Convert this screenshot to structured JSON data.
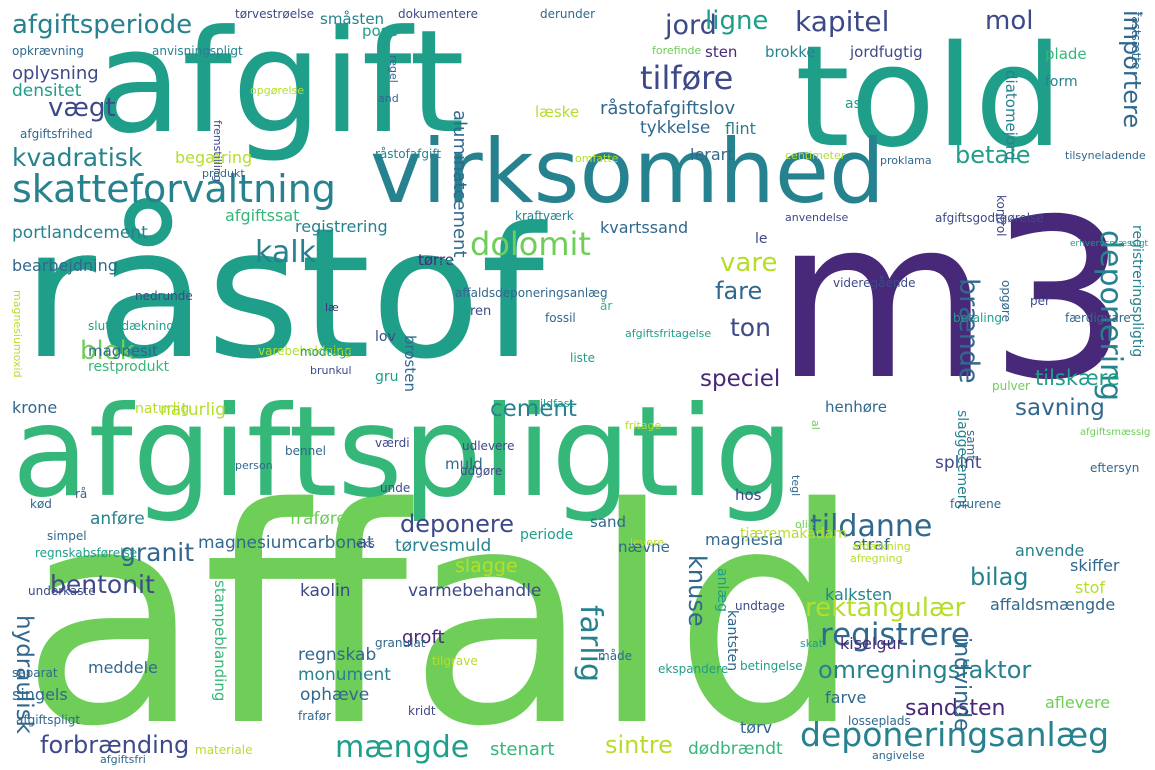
{
  "palette": {
    "p0": "#440154",
    "p1": "#482878",
    "p2": "#3e4989",
    "p3": "#31688e",
    "p4": "#26828e",
    "p5": "#1f9e89",
    "p6": "#35b779",
    "p7": "#6ece58",
    "p8": "#b5de2b",
    "p9": "#fde725"
  },
  "words": [
    {
      "text": "affald",
      "color": "p7"
    },
    {
      "text": "afgiftspligtig",
      "color": "p6"
    },
    {
      "text": "råstof",
      "color": "p5"
    },
    {
      "text": "m3",
      "color": "p1"
    },
    {
      "text": "afgift",
      "color": "p5"
    },
    {
      "text": "told",
      "color": "p5"
    },
    {
      "text": "virksomhed",
      "color": "p4"
    },
    {
      "text": "skatteforvaltning",
      "color": "p4"
    },
    {
      "text": "afgiftsperiode",
      "color": "p4"
    },
    {
      "text": "deponeringsanlæg",
      "color": "p4"
    },
    {
      "text": "deponering",
      "color": "p4"
    },
    {
      "text": "registrere",
      "color": "p3"
    },
    {
      "text": "tildanne",
      "color": "p3"
    },
    {
      "text": "dolomit",
      "color": "p7"
    },
    {
      "text": "kalk",
      "color": "p4"
    },
    {
      "text": "tilføre",
      "color": "p2"
    },
    {
      "text": "kapitel",
      "color": "p2"
    },
    {
      "text": "jord",
      "color": "p2"
    },
    {
      "text": "ligne",
      "color": "p5"
    },
    {
      "text": "mol",
      "color": "p2"
    },
    {
      "text": "importere",
      "color": "p3"
    },
    {
      "text": "vægt",
      "color": "p2"
    },
    {
      "text": "kvadratisk",
      "color": "p4"
    },
    {
      "text": "betale",
      "color": "p5"
    },
    {
      "text": "vare",
      "color": "p8"
    },
    {
      "text": "fare",
      "color": "p3"
    },
    {
      "text": "brænde",
      "color": "p3"
    },
    {
      "text": "ton",
      "color": "p2"
    },
    {
      "text": "blok",
      "color": "p7"
    },
    {
      "text": "speciel",
      "color": "p1"
    },
    {
      "text": "cement",
      "color": "p4"
    },
    {
      "text": "savning",
      "color": "p3"
    },
    {
      "text": "tilskære",
      "color": "p5"
    },
    {
      "text": "granit",
      "color": "p3"
    },
    {
      "text": "bentonit",
      "color": "p2"
    },
    {
      "text": "farlig",
      "color": "p4"
    },
    {
      "text": "knuse",
      "color": "p3"
    },
    {
      "text": "hydraulisk",
      "color": "p3"
    },
    {
      "text": "deponere",
      "color": "p2"
    },
    {
      "text": "bilag",
      "color": "p4"
    },
    {
      "text": "rektangulær",
      "color": "p8"
    },
    {
      "text": "omregningsfaktor",
      "color": "p4"
    },
    {
      "text": "mængde",
      "color": "p5"
    },
    {
      "text": "sintre",
      "color": "p8"
    },
    {
      "text": "forbrænding",
      "color": "p2"
    },
    {
      "text": "sandsten",
      "color": "p1"
    },
    {
      "text": "indvinde",
      "color": "p3"
    },
    {
      "text": "oplysning",
      "color": "p2"
    },
    {
      "text": "densitet",
      "color": "p5"
    },
    {
      "text": "portlandcement",
      "color": "p4"
    },
    {
      "text": "bearbejdning",
      "color": "p3"
    },
    {
      "text": "registrering",
      "color": "p4"
    },
    {
      "text": "kvartssand",
      "color": "p3"
    },
    {
      "text": "aluminatcement",
      "color": "p3"
    },
    {
      "text": "råstofafgiftslov",
      "color": "p3"
    },
    {
      "text": "tykkelse",
      "color": "p3"
    },
    {
      "text": "flint",
      "color": "p4"
    },
    {
      "text": "lerart",
      "color": "p3"
    },
    {
      "text": "begæring",
      "color": "p8"
    },
    {
      "text": "afgiftssat",
      "color": "p6"
    },
    {
      "text": "magnesit",
      "color": "p3"
    },
    {
      "text": "restprodukt",
      "color": "p6"
    },
    {
      "text": "naturlig",
      "color": "p8"
    },
    {
      "text": "krone",
      "color": "p3"
    },
    {
      "text": "magnesiumcarbonat",
      "color": "p3"
    },
    {
      "text": "tørvesmuld",
      "color": "p4"
    },
    {
      "text": "anføre",
      "color": "p4"
    },
    {
      "text": "fraføre",
      "color": "p7"
    },
    {
      "text": "slagge",
      "color": "p8"
    },
    {
      "text": "varmebehandle",
      "color": "p2"
    },
    {
      "text": "kaolin",
      "color": "p2"
    },
    {
      "text": "groft",
      "color": "p1"
    },
    {
      "text": "regnskab",
      "color": "p3"
    },
    {
      "text": "monument",
      "color": "p4"
    },
    {
      "text": "ophæve",
      "color": "p3"
    },
    {
      "text": "stenart",
      "color": "p6"
    },
    {
      "text": "dødbrændt",
      "color": "p6"
    },
    {
      "text": "meddele",
      "color": "p3"
    },
    {
      "text": "singels",
      "color": "p3"
    },
    {
      "text": "stampeblanding",
      "color": "p6"
    },
    {
      "text": "kiselgur",
      "color": "p1"
    },
    {
      "text": "affaldsmængde",
      "color": "p3"
    },
    {
      "text": "skiffer",
      "color": "p3"
    },
    {
      "text": "stof",
      "color": "p8"
    },
    {
      "text": "anvende",
      "color": "p4"
    },
    {
      "text": "straf",
      "color": "p3"
    },
    {
      "text": "magnesia",
      "color": "p3"
    },
    {
      "text": "kalksten",
      "color": "p4"
    },
    {
      "text": "farve",
      "color": "p3"
    },
    {
      "text": "aflevere",
      "color": "p7"
    },
    {
      "text": "tørv",
      "color": "p3"
    },
    {
      "text": "splint",
      "color": "p2"
    },
    {
      "text": "henhøre",
      "color": "p3"
    },
    {
      "text": "slaggecement",
      "color": "p4"
    },
    {
      "text": "registreringspligtig",
      "color": "p4"
    },
    {
      "text": "naturlig",
      "color": "p8"
    },
    {
      "text": "småsten",
      "color": "p4"
    },
    {
      "text": "sten",
      "color": "p1"
    },
    {
      "text": "brokke",
      "color": "p4"
    },
    {
      "text": "jordfugtig",
      "color": "p2"
    },
    {
      "text": "plade",
      "color": "p6"
    },
    {
      "text": "form",
      "color": "p4"
    },
    {
      "text": "ask",
      "color": "p5"
    },
    {
      "text": "diatomejord",
      "color": "p4"
    },
    {
      "text": "pose",
      "color": "p5"
    },
    {
      "text": "læske",
      "color": "p8"
    },
    {
      "text": "brosten",
      "color": "p3"
    },
    {
      "text": "le",
      "color": "p2"
    },
    {
      "text": "tørre",
      "color": "p1"
    },
    {
      "text": "lov",
      "color": "p2"
    },
    {
      "text": "gru",
      "color": "p5"
    },
    {
      "text": "muld",
      "color": "p3"
    },
    {
      "text": "sand",
      "color": "p3"
    },
    {
      "text": "nævne",
      "color": "p3"
    },
    {
      "text": "periode",
      "color": "p5"
    },
    {
      "text": "anlæg",
      "color": "p5"
    },
    {
      "text": "hos",
      "color": "p2"
    },
    {
      "text": "kantsten",
      "color": "p3"
    },
    {
      "text": "tjæremakadam",
      "color": "p8"
    },
    {
      "text": "tørvestrøelse",
      "color": "p2"
    },
    {
      "text": "dokumentere",
      "color": "p2"
    },
    {
      "text": "derunder",
      "color": "p3"
    },
    {
      "text": "opkrævning",
      "color": "p3"
    },
    {
      "text": "anvisningspligt",
      "color": "p4"
    },
    {
      "text": "forefinde",
      "color": "p7"
    },
    {
      "text": "fastsætte",
      "color": "p3"
    },
    {
      "text": "afgiftsfrihed",
      "color": "p3"
    },
    {
      "text": "fremstilling",
      "color": "p2"
    },
    {
      "text": "opgørelse",
      "color": "p8"
    },
    {
      "text": "and",
      "color": "p3"
    },
    {
      "text": "regel",
      "color": "p3"
    },
    {
      "text": "råstofafgift",
      "color": "p4"
    },
    {
      "text": "produkt",
      "color": "p3"
    },
    {
      "text": "omfatte",
      "color": "p8"
    },
    {
      "text": "centimeter",
      "color": "p8"
    },
    {
      "text": "tilsyneladende",
      "color": "p3"
    },
    {
      "text": "proklama",
      "color": "p3"
    },
    {
      "text": "kraftværk",
      "color": "p4"
    },
    {
      "text": "anvendelse",
      "color": "p2"
    },
    {
      "text": "afgiftsgodtgørelse",
      "color": "p2"
    },
    {
      "text": "kontrol",
      "color": "p2"
    },
    {
      "text": "erhvervsmæssigt",
      "color": "p5"
    },
    {
      "text": "art",
      "color": "p5"
    },
    {
      "text": "affaldsdeponeringsanlæg",
      "color": "p3"
    },
    {
      "text": "per",
      "color": "p2"
    },
    {
      "text": "videregående",
      "color": "p2"
    },
    {
      "text": "betaling",
      "color": "p5"
    },
    {
      "text": "færdigvare",
      "color": "p3"
    },
    {
      "text": "opgøre",
      "color": "p3"
    },
    {
      "text": "afgiftsfritagelse",
      "color": "p5"
    },
    {
      "text": "år",
      "color": "p6"
    },
    {
      "text": "fossil",
      "color": "p3"
    },
    {
      "text": "ren",
      "color": "p2"
    },
    {
      "text": "læ",
      "color": "p1"
    },
    {
      "text": "nedrunde",
      "color": "p2"
    },
    {
      "text": "slutafdækning",
      "color": "p5"
    },
    {
      "text": "magnesiumoxid",
      "color": "p8"
    },
    {
      "text": "varebeholdning",
      "color": "p8"
    },
    {
      "text": "modtage",
      "color": "p5"
    },
    {
      "text": "liste",
      "color": "p5"
    },
    {
      "text": "brunkul",
      "color": "p2"
    },
    {
      "text": "ildfast",
      "color": "p5"
    },
    {
      "text": "fritage",
      "color": "p8"
    },
    {
      "text": "pulver",
      "color": "p7"
    },
    {
      "text": "samt",
      "color": "p3"
    },
    {
      "text": "afgiftsmæssig",
      "color": "p7"
    },
    {
      "text": "al",
      "color": "p7"
    },
    {
      "text": "person",
      "color": "p3"
    },
    {
      "text": "bennel",
      "color": "p3"
    },
    {
      "text": "værdi",
      "color": "p2"
    },
    {
      "text": "udlevere",
      "color": "p2"
    },
    {
      "text": "udgøre",
      "color": "p2"
    },
    {
      "text": "unde",
      "color": "p2"
    },
    {
      "text": "rå",
      "color": "p3"
    },
    {
      "text": "kød",
      "color": "p3"
    },
    {
      "text": "tegl",
      "color": "p3"
    },
    {
      "text": "eftersyn",
      "color": "p3"
    },
    {
      "text": "forurene",
      "color": "p3"
    },
    {
      "text": "olie",
      "color": "p7"
    },
    {
      "text": "levere",
      "color": "p8"
    },
    {
      "text": "afdækning",
      "color": "p8"
    },
    {
      "text": "simpel",
      "color": "p3"
    },
    {
      "text": "eks",
      "color": "p2"
    },
    {
      "text": "regnskabsførelse",
      "color": "p5"
    },
    {
      "text": "afregning",
      "color": "p8"
    },
    {
      "text": "underkaste",
      "color": "p2"
    },
    {
      "text": "undtage",
      "color": "p2"
    },
    {
      "text": "granulat",
      "color": "p3"
    },
    {
      "text": "tilgrave",
      "color": "p8"
    },
    {
      "text": "skat",
      "color": "p5"
    },
    {
      "text": "ekspandere",
      "color": "p5"
    },
    {
      "text": "måde",
      "color": "p3"
    },
    {
      "text": "betingelse",
      "color": "p5"
    },
    {
      "text": "separat",
      "color": "p3"
    },
    {
      "text": "kridt",
      "color": "p2"
    },
    {
      "text": "afgiftspligt",
      "color": "p3"
    },
    {
      "text": "frafør",
      "color": "p3"
    },
    {
      "text": "losseplads",
      "color": "p3"
    },
    {
      "text": "materiale",
      "color": "p8"
    },
    {
      "text": "afgiftsfri",
      "color": "p3"
    },
    {
      "text": "angivelse",
      "color": "p3"
    }
  ]
}
